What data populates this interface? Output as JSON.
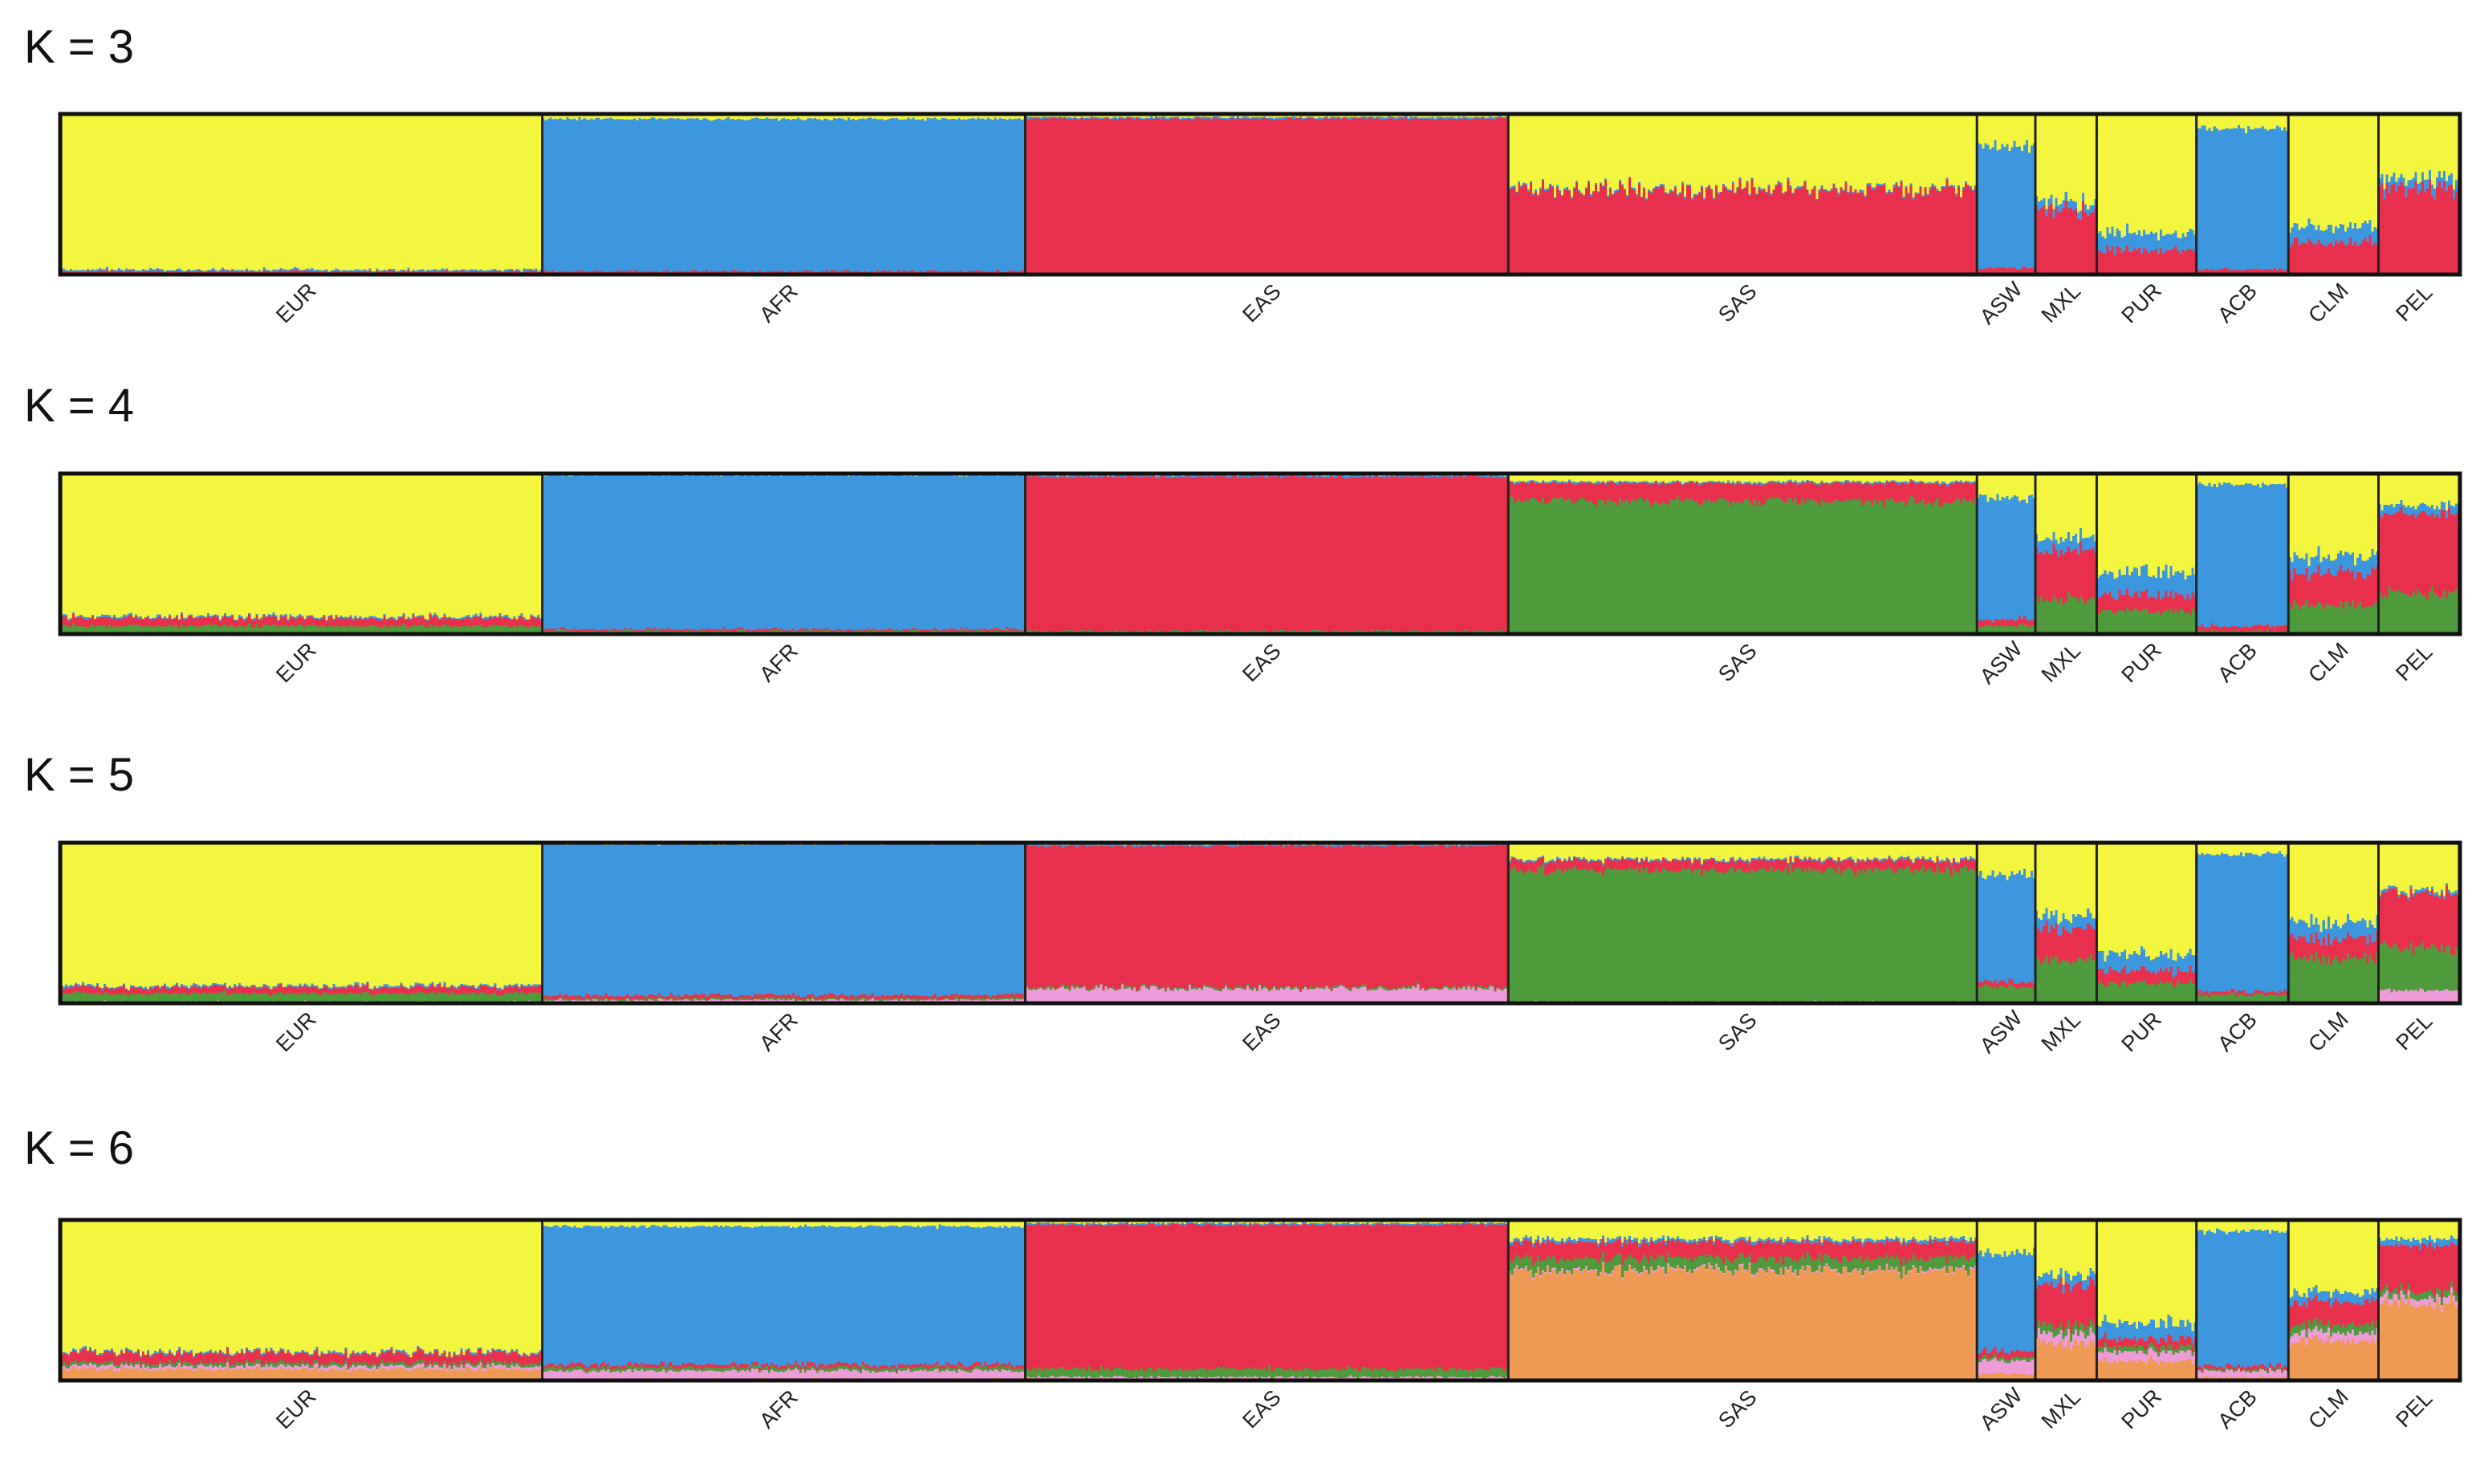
{
  "chart_data": {
    "type": "stacked-bar-admixture",
    "title": "",
    "xlabel": "",
    "ylabel": "",
    "ylim": [
      0,
      1
    ],
    "grid": false,
    "colors": {
      "yellow": "#F3F53F",
      "blue": "#3D97DE",
      "red": "#E8304D",
      "green": "#4F9A3D",
      "pink": "#EE9BD9",
      "orange": "#EE9A55"
    },
    "panels": [
      {
        "label": "K = 3",
        "components": [
          "yellow",
          "blue",
          "red"
        ],
        "populations": [
          {
            "name": "EUR",
            "n": 503,
            "proportions": [
              0.97,
              0.01,
              0.02
            ]
          },
          {
            "name": "AFR",
            "n": 504,
            "proportions": [
              0.03,
              0.95,
              0.02
            ]
          },
          {
            "name": "EAS",
            "n": 504,
            "proportions": [
              0.02,
              0.01,
              0.97
            ]
          },
          {
            "name": "SAS",
            "n": 489,
            "proportions": [
              0.46,
              0.01,
              0.53
            ]
          },
          {
            "name": "ASW",
            "n": 61,
            "proportions": [
              0.2,
              0.76,
              0.04
            ]
          },
          {
            "name": "MXL",
            "n": 64,
            "proportions": [
              0.55,
              0.05,
              0.4
            ]
          },
          {
            "name": "PUR",
            "n": 104,
            "proportions": [
              0.74,
              0.11,
              0.15
            ]
          },
          {
            "name": "ACB",
            "n": 96,
            "proportions": [
              0.09,
              0.88,
              0.03
            ]
          },
          {
            "name": "CLM",
            "n": 94,
            "proportions": [
              0.7,
              0.1,
              0.2
            ]
          },
          {
            "name": "PEL",
            "n": 85,
            "proportions": [
              0.41,
              0.06,
              0.53
            ]
          }
        ]
      },
      {
        "label": "K = 4",
        "components": [
          "yellow",
          "blue",
          "red",
          "green"
        ],
        "populations": [
          {
            "name": "EUR",
            "n": 503,
            "proportions": [
              0.89,
              0.01,
              0.05,
              0.05
            ]
          },
          {
            "name": "AFR",
            "n": 504,
            "proportions": [
              0.01,
              0.96,
              0.01,
              0.02
            ]
          },
          {
            "name": "EAS",
            "n": 504,
            "proportions": [
              0.01,
              0.01,
              0.96,
              0.02
            ]
          },
          {
            "name": "SAS",
            "n": 489,
            "proportions": [
              0.05,
              0.01,
              0.11,
              0.83
            ]
          },
          {
            "name": "ASW",
            "n": 61,
            "proportions": [
              0.15,
              0.76,
              0.04,
              0.05
            ]
          },
          {
            "name": "MXL",
            "n": 64,
            "proportions": [
              0.4,
              0.08,
              0.3,
              0.22
            ]
          },
          {
            "name": "PUR",
            "n": 104,
            "proportions": [
              0.62,
              0.14,
              0.1,
              0.14
            ]
          },
          {
            "name": "ACB",
            "n": 96,
            "proportions": [
              0.07,
              0.88,
              0.03,
              0.02
            ]
          },
          {
            "name": "CLM",
            "n": 94,
            "proportions": [
              0.52,
              0.1,
              0.2,
              0.18
            ]
          },
          {
            "name": "PEL",
            "n": 85,
            "proportions": [
              0.2,
              0.05,
              0.5,
              0.25
            ]
          }
        ]
      },
      {
        "label": "K = 5",
        "components": [
          "yellow",
          "blue",
          "red",
          "green",
          "pink"
        ],
        "populations": [
          {
            "name": "EUR",
            "n": 503,
            "proportions": [
              0.89,
              0.01,
              0.04,
              0.05,
              0.01
            ]
          },
          {
            "name": "AFR",
            "n": 504,
            "proportions": [
              0.01,
              0.94,
              0.02,
              0.01,
              0.02
            ]
          },
          {
            "name": "EAS",
            "n": 504,
            "proportions": [
              0.01,
              0.01,
              0.88,
              0.01,
              0.09
            ]
          },
          {
            "name": "SAS",
            "n": 489,
            "proportions": [
              0.1,
              0.01,
              0.06,
              0.82,
              0.01
            ]
          },
          {
            "name": "ASW",
            "n": 61,
            "proportions": [
              0.2,
              0.67,
              0.03,
              0.1,
              0.0
            ]
          },
          {
            "name": "MXL",
            "n": 64,
            "proportions": [
              0.46,
              0.08,
              0.2,
              0.26,
              0.0
            ]
          },
          {
            "name": "PUR",
            "n": 104,
            "proportions": [
              0.7,
              0.1,
              0.08,
              0.12,
              0.0
            ]
          },
          {
            "name": "ACB",
            "n": 96,
            "proportions": [
              0.07,
              0.86,
              0.02,
              0.05,
              0.0
            ]
          },
          {
            "name": "CLM",
            "n": 94,
            "proportions": [
              0.5,
              0.1,
              0.12,
              0.28,
              0.0
            ]
          },
          {
            "name": "PEL",
            "n": 85,
            "proportions": [
              0.3,
              0.02,
              0.34,
              0.26,
              0.08
            ]
          }
        ]
      },
      {
        "label": "K = 6",
        "components": [
          "yellow",
          "blue",
          "red",
          "green",
          "pink",
          "orange"
        ],
        "populations": [
          {
            "name": "EUR",
            "n": 503,
            "proportions": [
              0.82,
              0.01,
              0.06,
              0.02,
              0.02,
              0.07
            ]
          },
          {
            "name": "AFR",
            "n": 504,
            "proportions": [
              0.04,
              0.86,
              0.02,
              0.02,
              0.05,
              0.01
            ]
          },
          {
            "name": "EAS",
            "n": 504,
            "proportions": [
              0.02,
              0.01,
              0.9,
              0.05,
              0.01,
              0.01
            ]
          },
          {
            "name": "SAS",
            "n": 489,
            "proportions": [
              0.12,
              0.02,
              0.1,
              0.07,
              0.01,
              0.68
            ]
          },
          {
            "name": "ASW",
            "n": 61,
            "proportions": [
              0.2,
              0.62,
              0.04,
              0.02,
              0.08,
              0.04
            ]
          },
          {
            "name": "MXL",
            "n": 64,
            "proportions": [
              0.35,
              0.06,
              0.25,
              0.05,
              0.06,
              0.23
            ]
          },
          {
            "name": "PUR",
            "n": 104,
            "proportions": [
              0.64,
              0.1,
              0.05,
              0.03,
              0.06,
              0.12
            ]
          },
          {
            "name": "ACB",
            "n": 96,
            "proportions": [
              0.07,
              0.84,
              0.02,
              0.01,
              0.04,
              0.02
            ]
          },
          {
            "name": "CLM",
            "n": 94,
            "proportions": [
              0.45,
              0.06,
              0.14,
              0.05,
              0.05,
              0.25
            ]
          },
          {
            "name": "PEL",
            "n": 85,
            "proportions": [
              0.12,
              0.04,
              0.28,
              0.04,
              0.04,
              0.48
            ]
          }
        ]
      }
    ]
  }
}
